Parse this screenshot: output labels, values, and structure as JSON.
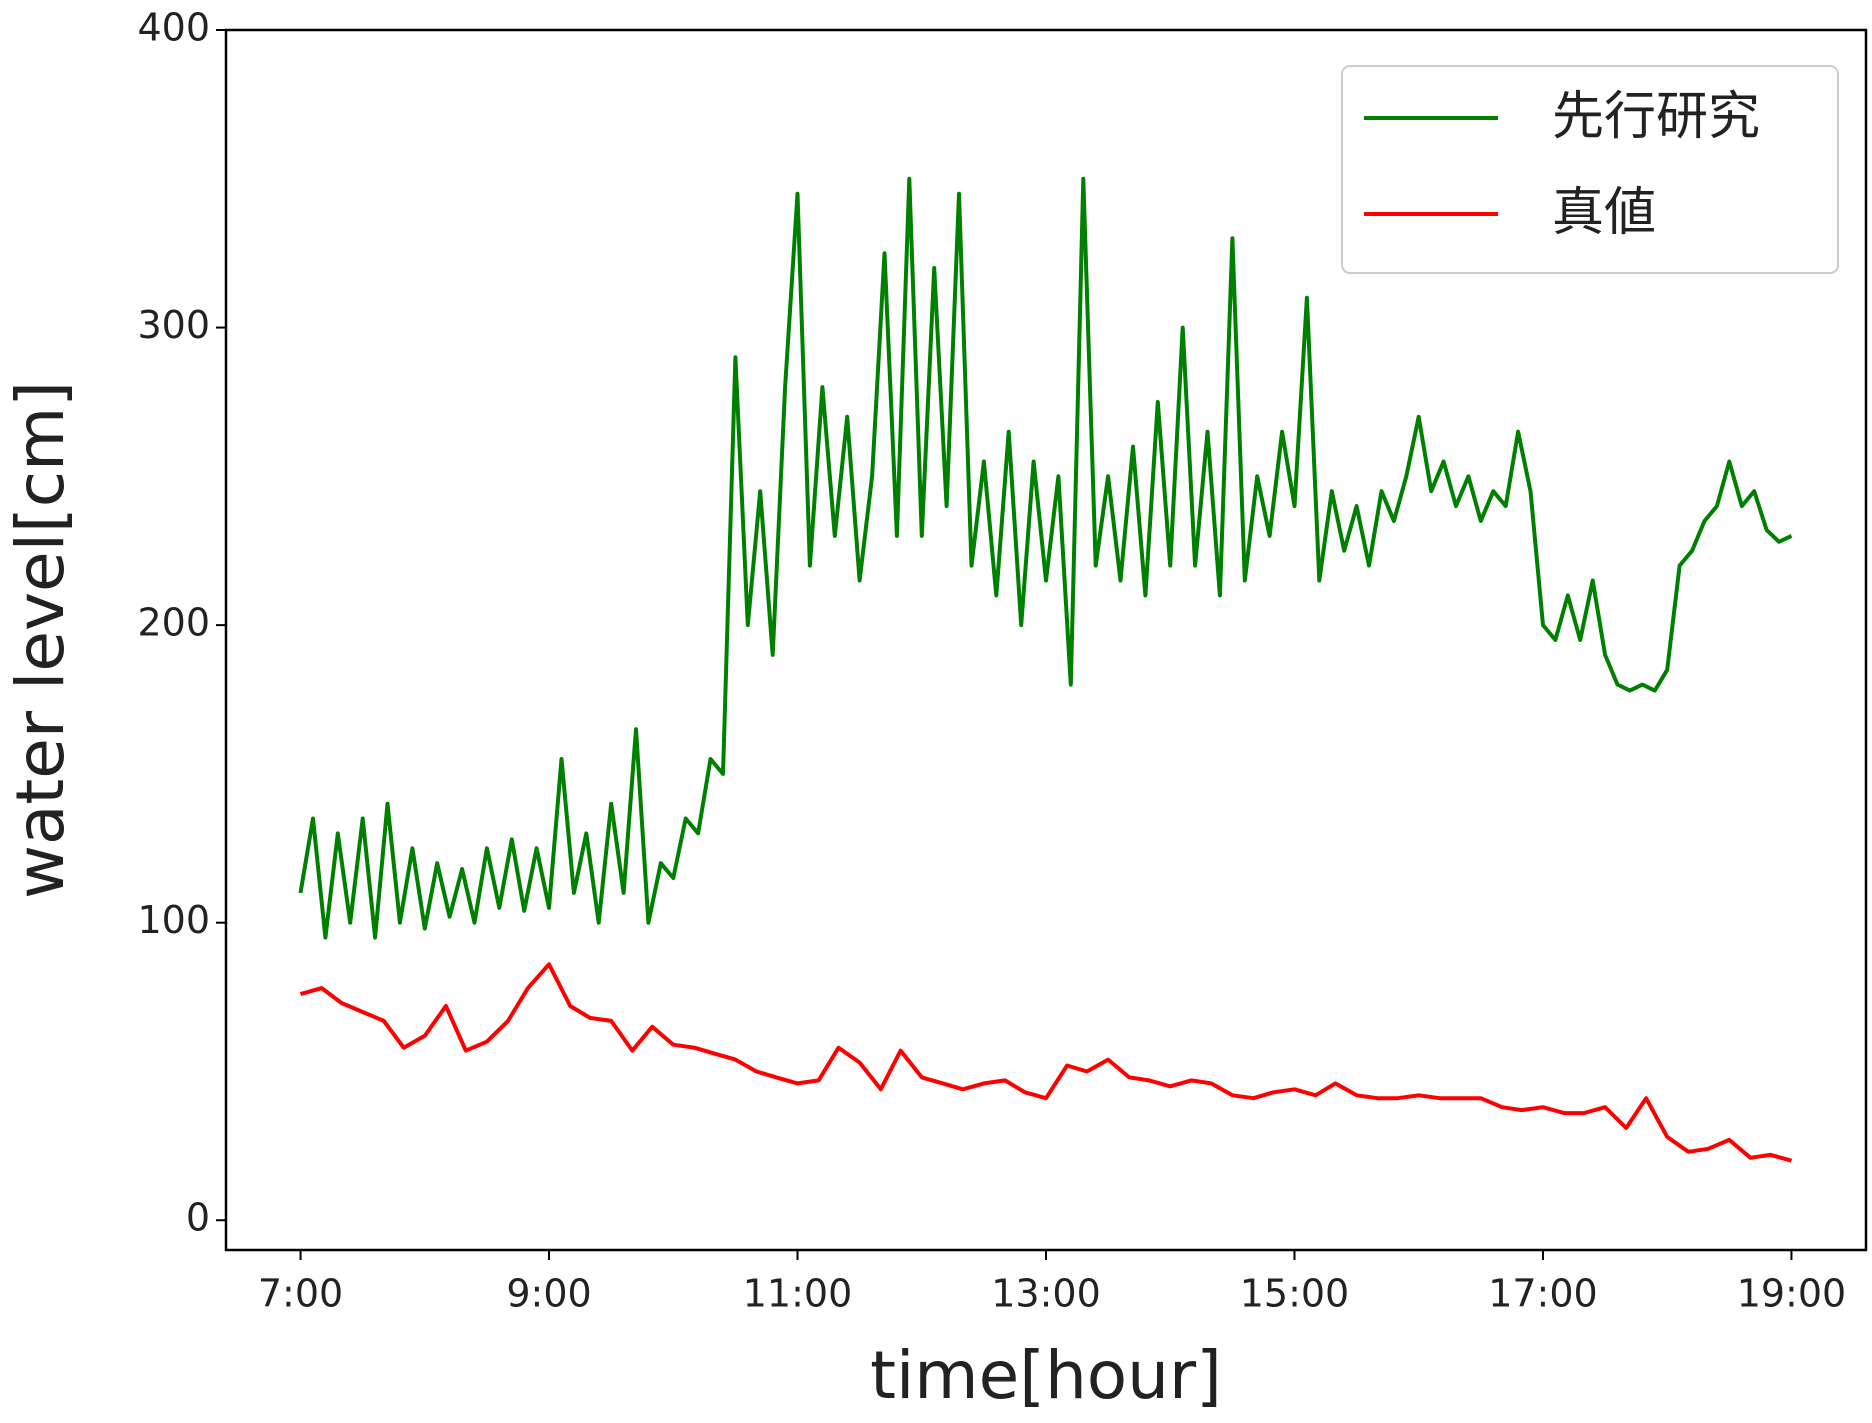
{
  "chart_data": {
    "type": "line",
    "xlabel": "time[hour]",
    "ylabel": "water level[cm]",
    "xlim": [
      6.4,
      19.6
    ],
    "ylim": [
      -10,
      400
    ],
    "xticks": [
      {
        "value": 7,
        "label": "7:00"
      },
      {
        "value": 9,
        "label": "9:00"
      },
      {
        "value": 11,
        "label": "11:00"
      },
      {
        "value": 13,
        "label": "13:00"
      },
      {
        "value": 15,
        "label": "15:00"
      },
      {
        "value": 17,
        "label": "17:00"
      },
      {
        "value": 19,
        "label": "19:00"
      }
    ],
    "yticks": [
      0,
      100,
      200,
      300,
      400
    ],
    "grid": false,
    "legend": "upper right",
    "series": [
      {
        "name": "先行研究",
        "color": "#008000",
        "x": [
          7.0,
          7.1,
          7.2,
          7.3,
          7.4,
          7.5,
          7.6,
          7.7,
          7.8,
          7.9,
          8.0,
          8.1,
          8.2,
          8.3,
          8.4,
          8.5,
          8.6,
          8.7,
          8.8,
          8.9,
          9.0,
          9.1,
          9.2,
          9.3,
          9.4,
          9.5,
          9.6,
          9.7,
          9.8,
          9.9,
          10.0,
          10.1,
          10.2,
          10.3,
          10.4,
          10.5,
          10.6,
          10.7,
          10.8,
          10.9,
          11.0,
          11.1,
          11.2,
          11.3,
          11.4,
          11.5,
          11.6,
          11.7,
          11.8,
          11.9,
          12.0,
          12.1,
          12.2,
          12.3,
          12.4,
          12.5,
          12.6,
          12.7,
          12.8,
          12.9,
          13.0,
          13.1,
          13.2,
          13.3,
          13.4,
          13.5,
          13.6,
          13.7,
          13.8,
          13.9,
          14.0,
          14.1,
          14.2,
          14.3,
          14.4,
          14.5,
          14.6,
          14.7,
          14.8,
          14.9,
          15.0,
          15.1,
          15.2,
          15.3,
          15.4,
          15.5,
          15.6,
          15.7,
          15.8,
          15.9,
          16.0,
          16.1,
          16.2,
          16.3,
          16.4,
          16.5,
          16.6,
          16.7,
          16.8,
          16.9,
          17.0,
          17.1,
          17.2,
          17.3,
          17.4,
          17.5,
          17.6,
          17.7,
          17.8,
          17.9,
          18.0,
          18.1,
          18.2,
          18.3,
          18.4,
          18.5,
          18.6,
          18.7,
          18.8,
          18.9,
          19.0
        ],
        "values": [
          110,
          135,
          95,
          130,
          100,
          135,
          95,
          140,
          100,
          125,
          98,
          120,
          102,
          118,
          100,
          125,
          105,
          128,
          104,
          125,
          105,
          155,
          110,
          130,
          100,
          140,
          110,
          165,
          100,
          120,
          115,
          135,
          130,
          155,
          150,
          290,
          200,
          245,
          190,
          280,
          345,
          220,
          280,
          230,
          270,
          215,
          250,
          325,
          230,
          350,
          230,
          320,
          240,
          345,
          220,
          255,
          210,
          265,
          200,
          255,
          215,
          250,
          180,
          350,
          220,
          250,
          215,
          260,
          210,
          275,
          220,
          300,
          220,
          265,
          210,
          330,
          215,
          250,
          230,
          265,
          240,
          310,
          215,
          245,
          225,
          240,
          220,
          245,
          235,
          250,
          270,
          245,
          255,
          240,
          250,
          235,
          245,
          240,
          265,
          245,
          200,
          195,
          210,
          195,
          215,
          190,
          180,
          178,
          180,
          178,
          185,
          220,
          225,
          235,
          240,
          255,
          240,
          245,
          232,
          228,
          230
        ]
      },
      {
        "name": "真値",
        "color": "#ff0000",
        "x": [
          7.0,
          7.17,
          7.33,
          7.5,
          7.67,
          7.83,
          8.0,
          8.17,
          8.33,
          8.5,
          8.67,
          8.83,
          9.0,
          9.17,
          9.33,
          9.5,
          9.67,
          9.83,
          10.0,
          10.17,
          10.33,
          10.5,
          10.67,
          10.83,
          11.0,
          11.17,
          11.33,
          11.5,
          11.67,
          11.83,
          12.0,
          12.17,
          12.33,
          12.5,
          12.67,
          12.83,
          13.0,
          13.17,
          13.33,
          13.5,
          13.67,
          13.83,
          14.0,
          14.17,
          14.33,
          14.5,
          14.67,
          14.83,
          15.0,
          15.17,
          15.33,
          15.5,
          15.67,
          15.83,
          16.0,
          16.17,
          16.33,
          16.5,
          16.67,
          16.83,
          17.0,
          17.17,
          17.33,
          17.5,
          17.67,
          17.83,
          18.0,
          18.17,
          18.33,
          18.5,
          18.67,
          18.83,
          19.0
        ],
        "values": [
          76,
          78,
          73,
          70,
          67,
          58,
          62,
          72,
          57,
          60,
          67,
          78,
          86,
          72,
          68,
          67,
          57,
          65,
          59,
          58,
          56,
          54,
          50,
          48,
          46,
          47,
          58,
          53,
          44,
          57,
          48,
          46,
          44,
          46,
          47,
          43,
          41,
          52,
          50,
          54,
          48,
          47,
          45,
          47,
          46,
          42,
          41,
          43,
          44,
          42,
          46,
          42,
          41,
          41,
          42,
          41,
          41,
          41,
          38,
          37,
          38,
          36,
          36,
          38,
          31,
          41,
          28,
          23,
          24,
          27,
          21,
          22,
          20
        ]
      }
    ]
  }
}
